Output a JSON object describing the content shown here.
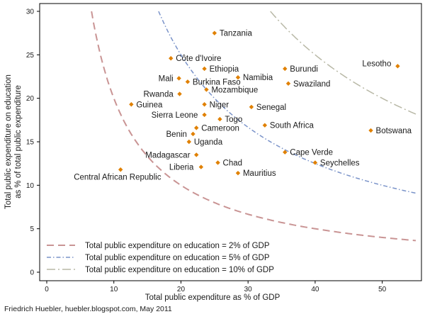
{
  "chart_data": {
    "type": "scatter",
    "xlabel": "Total public expenditure as % of GDP",
    "ylabel": [
      "Total public expenditure on education",
      "as % of total public expenditure"
    ],
    "xlim": [
      0,
      55
    ],
    "ylim": [
      0,
      30
    ],
    "xticks": [
      0,
      10,
      20,
      30,
      40,
      50
    ],
    "yticks": [
      0,
      5,
      10,
      15,
      20,
      25,
      30
    ],
    "grid": false,
    "point_color": "#e08000",
    "points": [
      {
        "label": "Tanzania",
        "x": 25,
        "y": 27.5
      },
      {
        "label": "Côte d'Ivoire",
        "x": 18.5,
        "y": 24.6
      },
      {
        "label": "Ethiopia",
        "x": 23.5,
        "y": 23.4
      },
      {
        "label": "Burundi",
        "x": 35.5,
        "y": 23.4
      },
      {
        "label": "Lesotho",
        "x": 52.3,
        "y": 23.7
      },
      {
        "label": "Mali",
        "x": 19.7,
        "y": 22.3
      },
      {
        "label": "Burkina Faso",
        "x": 21,
        "y": 21.9
      },
      {
        "label": "Namibia",
        "x": 28.5,
        "y": 22.4
      },
      {
        "label": "Swaziland",
        "x": 36,
        "y": 21.7
      },
      {
        "label": "Mozambique",
        "x": 23.8,
        "y": 21
      },
      {
        "label": "Rwanda",
        "x": 19.8,
        "y": 20.5
      },
      {
        "label": "Guinea",
        "x": 12.6,
        "y": 19.3
      },
      {
        "label": "Niger",
        "x": 23.5,
        "y": 19.3
      },
      {
        "label": "Senegal",
        "x": 30.5,
        "y": 19
      },
      {
        "label": "Sierra Leone",
        "x": 23.5,
        "y": 18.1
      },
      {
        "label": "Togo",
        "x": 25.8,
        "y": 17.6
      },
      {
        "label": "South Africa",
        "x": 32.5,
        "y": 16.9
      },
      {
        "label": "Cameroon",
        "x": 22.3,
        "y": 16.6
      },
      {
        "label": "Botswana",
        "x": 48.3,
        "y": 16.3
      },
      {
        "label": "Benin",
        "x": 21.8,
        "y": 15.9
      },
      {
        "label": "Uganda",
        "x": 21.2,
        "y": 15
      },
      {
        "label": "Cape Verde",
        "x": 35.5,
        "y": 13.8
      },
      {
        "label": "Madagascar",
        "x": 22.3,
        "y": 13.5
      },
      {
        "label": "Seychelles",
        "x": 40,
        "y": 12.6
      },
      {
        "label": "Chad",
        "x": 25.5,
        "y": 12.6
      },
      {
        "label": "Liberia",
        "x": 23,
        "y": 12.1
      },
      {
        "label": "Mauritius",
        "x": 28.5,
        "y": 11.4
      },
      {
        "label": "Central African Republic",
        "x": 11,
        "y": 11.8
      }
    ],
    "curves": [
      {
        "name": "Total public expenditure on education = 2% of GDP",
        "gdp_share": 2,
        "color": "#c99494",
        "dash": "long-dash"
      },
      {
        "name": "Total public expenditure on education = 5% of GDP",
        "gdp_share": 5,
        "color": "#7a93c9",
        "dash": "dash-dot"
      },
      {
        "name": "Total public expenditure on education = 10% of GDP",
        "gdp_share": 10,
        "color": "#b8b8a6",
        "dash": "long-dash-dot"
      }
    ],
    "legend": "bottom-left"
  },
  "credit": "Friedrich Huebler, huebler.blogspot.com, May 2011"
}
